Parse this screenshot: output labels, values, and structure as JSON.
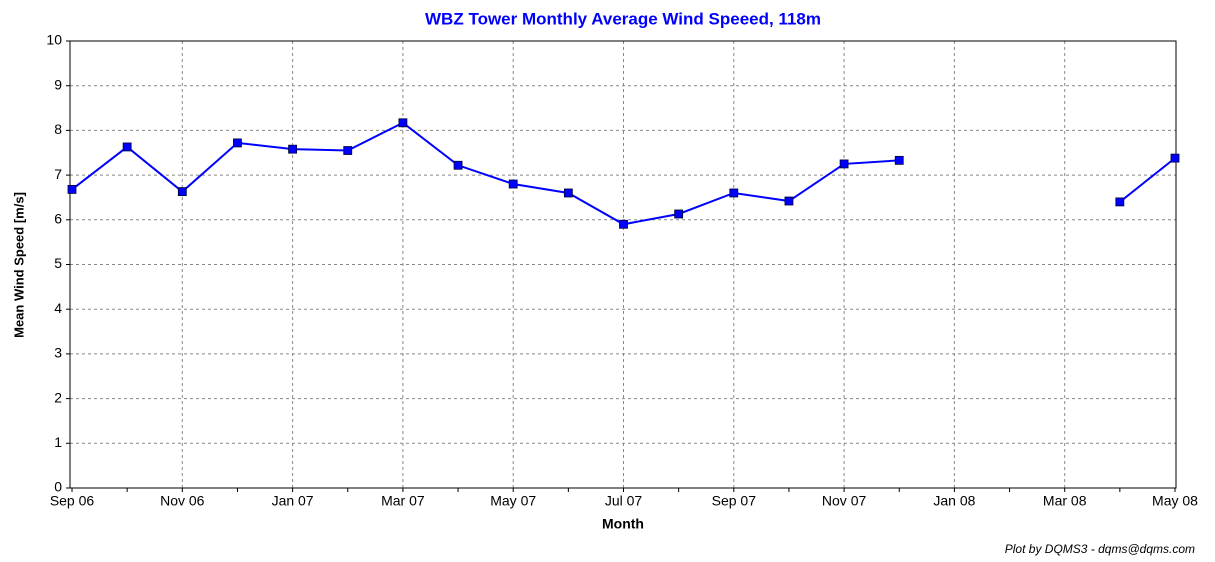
{
  "chart_data": {
    "type": "line",
    "title": "WBZ  Tower Monthly Average Wind Speeed, 118m",
    "x_label": "Month",
    "y_label": "Mean Wind Speed [m/s]",
    "footer": "Plot by DQMS3 - dqms@dqms.com",
    "categories": [
      "Sep 06",
      null,
      "Nov 06",
      null,
      "Jan 07",
      null,
      "Mar 07",
      null,
      "May 07",
      null,
      "Jul 07",
      null,
      "Sep 07",
      null,
      "Nov 07",
      null,
      "Jan 08",
      null,
      "Mar 08",
      null,
      "May 08"
    ],
    "series": [
      {
        "name": "Mean Wind Speed",
        "color": "#0000ff",
        "values": [
          6.68,
          7.63,
          6.63,
          7.72,
          7.58,
          7.55,
          8.17,
          7.22,
          6.8,
          6.6,
          5.9,
          6.13,
          6.6,
          6.42,
          7.25,
          7.33,
          null,
          null,
          null,
          6.4,
          7.38
        ]
      }
    ],
    "ylim": [
      0,
      10
    ],
    "yticks": [
      0,
      1,
      2,
      3,
      4,
      5,
      6,
      7,
      8,
      9,
      10
    ],
    "grid": true
  }
}
